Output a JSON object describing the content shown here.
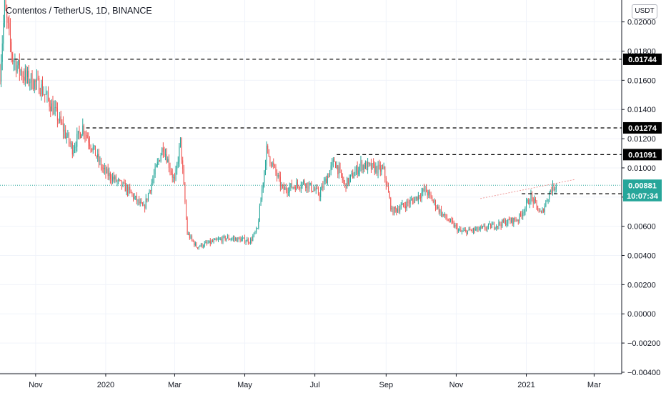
{
  "title": "Contentos / TetherUS, 1D, BINANCE",
  "currency_button": "USDT",
  "colors": {
    "up": "#26a69a",
    "down": "#ef5350",
    "grid": "#f0f3fa",
    "axis": "#131722",
    "price_line": "#26a69a"
  },
  "chart_data": {
    "type": "candlestick",
    "title": "Contentos / TetherUS, 1D, BINANCE",
    "y_ticks": [
      "0.02000",
      "0.01800",
      "0.01600",
      "0.01400",
      "0.01200",
      "0.01000",
      "0.00800",
      "0.00600",
      "0.00400",
      "0.00200",
      "0.00000",
      "−0.00200",
      "−0.00400"
    ],
    "y_tick_values": [
      0.02,
      0.018,
      0.016,
      0.014,
      0.012,
      0.01,
      0.008,
      0.006,
      0.004,
      0.002,
      0.0,
      -0.002,
      -0.004
    ],
    "ylim": [
      -0.0041,
      0.0215
    ],
    "x_ticks": [
      {
        "label": "Nov",
        "date": "2019-11-01"
      },
      {
        "label": "2020",
        "date": "2020-01-01"
      },
      {
        "label": "Mar",
        "date": "2020-03-01"
      },
      {
        "label": "May",
        "date": "2020-05-01"
      },
      {
        "label": "Jul",
        "date": "2020-07-01"
      },
      {
        "label": "Sep",
        "date": "2020-09-01"
      },
      {
        "label": "Nov",
        "date": "2020-11-01"
      },
      {
        "label": "2021",
        "date": "2021-01-01"
      },
      {
        "label": "Mar",
        "date": "2021-03-01"
      }
    ],
    "xlim": [
      "2019-10-01",
      "2021-03-25"
    ],
    "horizontal_levels": [
      {
        "label": "0.01744",
        "value": 0.01744,
        "start": "2019-10-08"
      },
      {
        "label": "0.01274",
        "value": 0.01274,
        "start": "2019-12-15"
      },
      {
        "label": "0.01091",
        "value": 0.01091,
        "start": "2020-07-20"
      },
      {
        "label": "0.00823",
        "value": 0.00823,
        "start": "2020-12-28"
      }
    ],
    "current_price": {
      "label": "0.00881",
      "value": 0.00881
    },
    "countdown": {
      "label": "10:07:34",
      "value": 0.0081
    },
    "trend_line": {
      "start": {
        "date": "2020-11-22",
        "value": 0.0079
      },
      "end": {
        "date": "2021-02-12",
        "value": 0.0092
      }
    },
    "price_path": [
      {
        "date": "2019-10-01",
        "value": 0.0165
      },
      {
        "date": "2019-10-05",
        "value": 0.021
      },
      {
        "date": "2019-10-12",
        "value": 0.0175
      },
      {
        "date": "2019-10-22",
        "value": 0.0163
      },
      {
        "date": "2019-11-05",
        "value": 0.0156
      },
      {
        "date": "2019-11-20",
        "value": 0.0135
      },
      {
        "date": "2019-12-03",
        "value": 0.0113
      },
      {
        "date": "2019-12-12",
        "value": 0.0128
      },
      {
        "date": "2019-12-30",
        "value": 0.0098
      },
      {
        "date": "2020-01-20",
        "value": 0.0085
      },
      {
        "date": "2020-02-03",
        "value": 0.0072
      },
      {
        "date": "2020-02-20",
        "value": 0.0115
      },
      {
        "date": "2020-03-01",
        "value": 0.009
      },
      {
        "date": "2020-03-06",
        "value": 0.0118
      },
      {
        "date": "2020-03-12",
        "value": 0.0055
      },
      {
        "date": "2020-03-20",
        "value": 0.0046
      },
      {
        "date": "2020-04-15",
        "value": 0.0052
      },
      {
        "date": "2020-05-06",
        "value": 0.005
      },
      {
        "date": "2020-05-12",
        "value": 0.0058
      },
      {
        "date": "2020-05-20",
        "value": 0.0112
      },
      {
        "date": "2020-06-03",
        "value": 0.0085
      },
      {
        "date": "2020-06-22",
        "value": 0.009
      },
      {
        "date": "2020-07-05",
        "value": 0.0082
      },
      {
        "date": "2020-07-18",
        "value": 0.0105
      },
      {
        "date": "2020-07-27",
        "value": 0.0088
      },
      {
        "date": "2020-08-10",
        "value": 0.0102
      },
      {
        "date": "2020-08-30",
        "value": 0.0098
      },
      {
        "date": "2020-09-06",
        "value": 0.007
      },
      {
        "date": "2020-09-25",
        "value": 0.0078
      },
      {
        "date": "2020-10-05",
        "value": 0.0085
      },
      {
        "date": "2020-10-20",
        "value": 0.0068
      },
      {
        "date": "2020-11-05",
        "value": 0.0056
      },
      {
        "date": "2020-11-22",
        "value": 0.0058
      },
      {
        "date": "2020-12-10",
        "value": 0.0062
      },
      {
        "date": "2020-12-25",
        "value": 0.0065
      },
      {
        "date": "2021-01-05",
        "value": 0.008
      },
      {
        "date": "2021-01-14",
        "value": 0.0068
      },
      {
        "date": "2021-01-22",
        "value": 0.0085
      },
      {
        "date": "2021-01-27",
        "value": 0.00881
      }
    ]
  }
}
